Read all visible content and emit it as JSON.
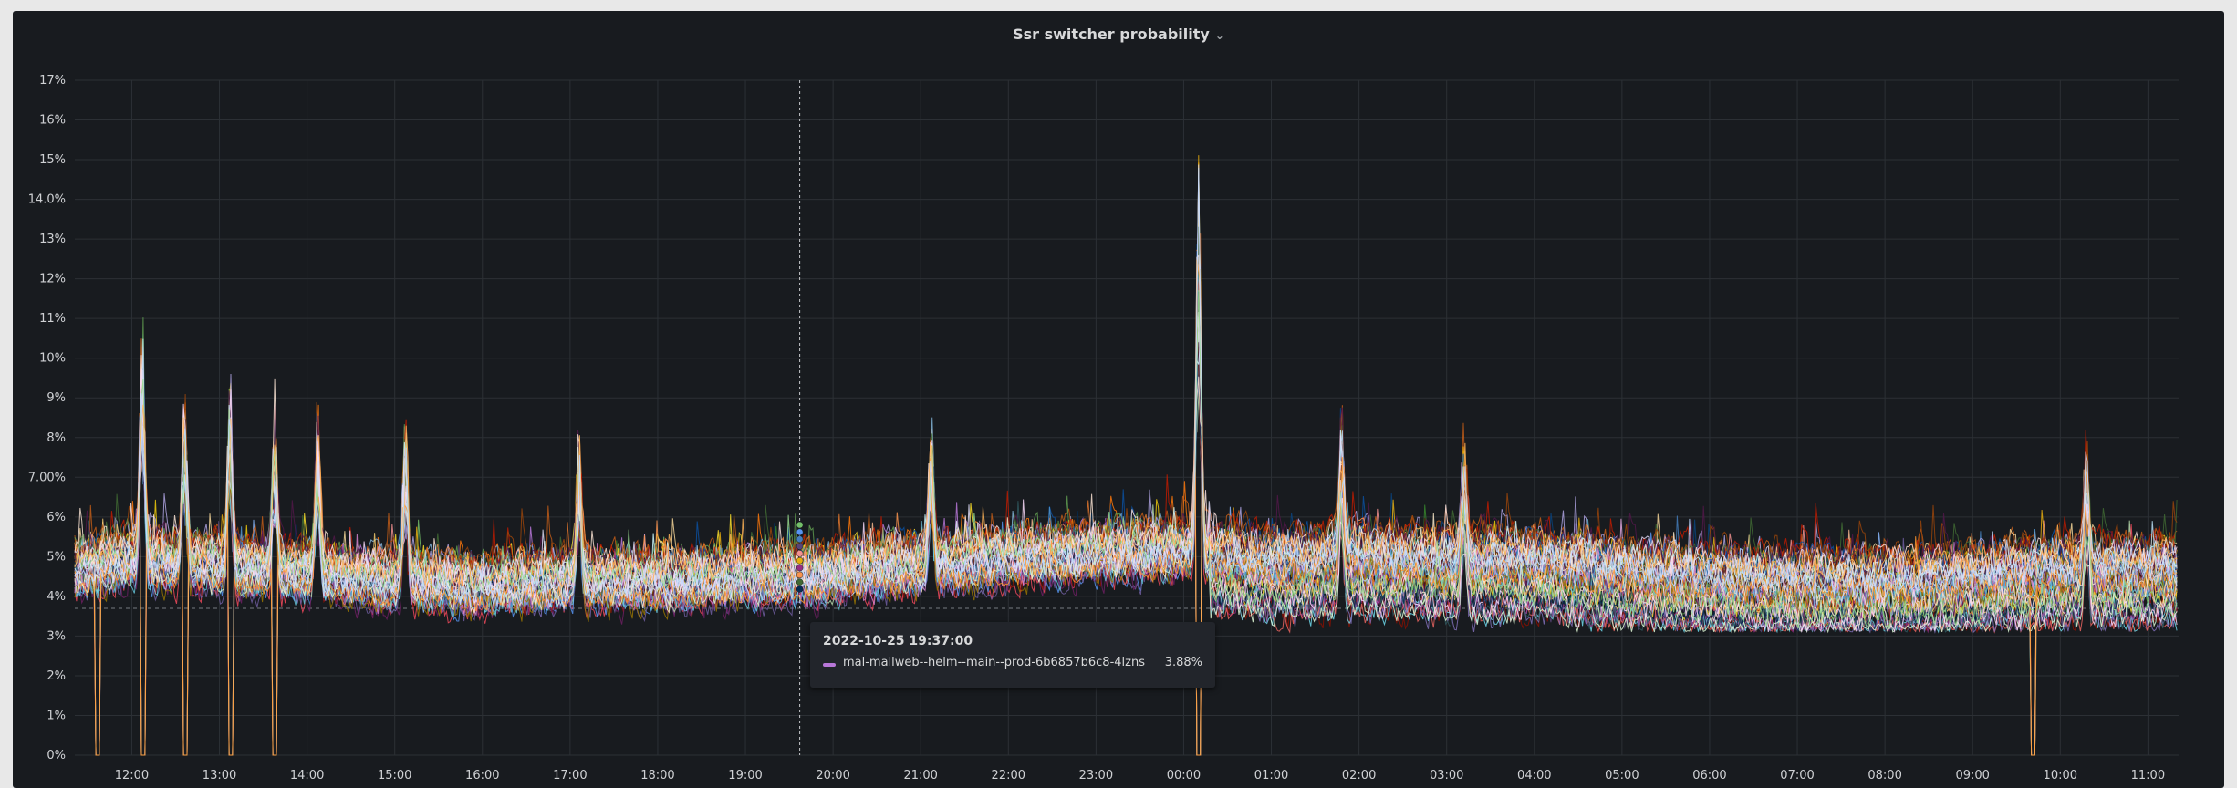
{
  "panel": {
    "title": "Ssr switcher probability",
    "chevron": "chevron-down-icon"
  },
  "tooltip": {
    "time": "2022-10-25 19:37:00",
    "series": "mal-mallweb--helm--main--prod-6b6857b6c8-4lzns",
    "value": "3.88%",
    "color": "#b877d9"
  },
  "colors": {
    "background": "#181b1f",
    "grid": "#2c3035",
    "text": "#cfd1d4",
    "threshold": "#9fa4a9"
  },
  "chart_data": {
    "type": "line",
    "title": "Ssr switcher probability",
    "xlabel": "",
    "ylabel": "",
    "x_ticks": [
      "12:00",
      "13:00",
      "14:00",
      "15:00",
      "16:00",
      "17:00",
      "18:00",
      "19:00",
      "20:00",
      "21:00",
      "22:00",
      "23:00",
      "00:00",
      "01:00",
      "02:00",
      "03:00",
      "04:00",
      "05:00",
      "06:00",
      "07:00",
      "08:00",
      "09:00",
      "10:00",
      "11:00"
    ],
    "y_ticks": [
      "0%",
      "1%",
      "2%",
      "3%",
      "4%",
      "5%",
      "6%",
      "7.00%",
      "8%",
      "9%",
      "10%",
      "11%",
      "12%",
      "13%",
      "14.0%",
      "15%",
      "16%",
      "17%"
    ],
    "ylim": [
      0,
      17
    ],
    "xlim_hours": [
      11.35,
      35.35
    ],
    "series_count": 60,
    "baseline_by_hour": [
      [
        11.35,
        4.7
      ],
      [
        12.0,
        4.9
      ],
      [
        13.0,
        4.8
      ],
      [
        14.0,
        4.6
      ],
      [
        15.0,
        4.4
      ],
      [
        16.0,
        4.3
      ],
      [
        17.0,
        4.4
      ],
      [
        18.0,
        4.4
      ],
      [
        19.0,
        4.5
      ],
      [
        20.0,
        4.6
      ],
      [
        21.0,
        4.8
      ],
      [
        22.0,
        5.0
      ],
      [
        23.0,
        5.1
      ],
      [
        24.0,
        5.2
      ],
      [
        25.0,
        5.0
      ],
      [
        26.0,
        5.1
      ],
      [
        27.0,
        5.0
      ],
      [
        28.0,
        5.0
      ],
      [
        29.0,
        4.8
      ],
      [
        30.0,
        4.6
      ],
      [
        31.0,
        4.5
      ],
      [
        32.0,
        4.5
      ],
      [
        33.0,
        4.6
      ],
      [
        34.0,
        4.8
      ],
      [
        35.35,
        4.8
      ]
    ],
    "spikes": [
      {
        "hour": 12.12,
        "value": 10.7
      },
      {
        "hour": 12.6,
        "value": 8.7
      },
      {
        "hour": 13.12,
        "value": 9.2
      },
      {
        "hour": 13.63,
        "value": 8.3
      },
      {
        "hour": 14.12,
        "value": 8.6
      },
      {
        "hour": 15.12,
        "value": 8.2
      },
      {
        "hour": 17.1,
        "value": 7.9
      },
      {
        "hour": 21.12,
        "value": 8.2
      },
      {
        "hour": 24.17,
        "value": 15.0
      },
      {
        "hour": 25.8,
        "value": 8.5
      },
      {
        "hour": 27.2,
        "value": 7.7
      },
      {
        "hour": 34.3,
        "value": 7.6
      }
    ],
    "drops_to_zero_hours": [
      11.6,
      12.12,
      12.6,
      13.12,
      13.63,
      24.17,
      33.68
    ],
    "threshold_line": 3.7,
    "cursor_hour": 19.62,
    "grid": true,
    "legend": "none"
  }
}
